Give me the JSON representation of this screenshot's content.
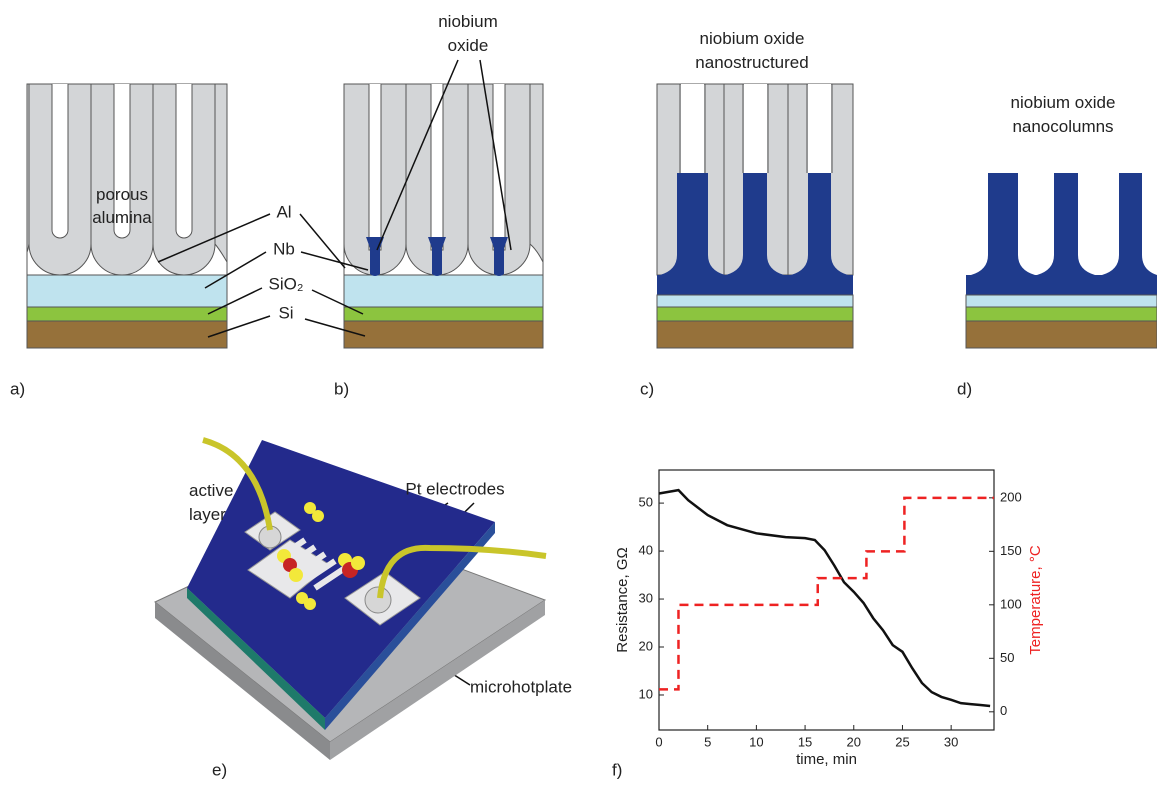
{
  "panel_labels": [
    "a)",
    "b)",
    "c)",
    "d)",
    "e)",
    "f)"
  ],
  "panel_a": {
    "porous_alumina": [
      "porous",
      "alumina"
    ],
    "layers": [
      "Al",
      "Nb",
      "SiO₂",
      "Si"
    ]
  },
  "panel_b": {
    "niobium_oxide": [
      "niobium",
      "oxide"
    ]
  },
  "panel_c": {
    "title": [
      "niobium oxide",
      "nanostructured"
    ]
  },
  "panel_d": {
    "title": [
      "niobium oxide",
      "nanocolumns"
    ]
  },
  "panel_e": {
    "active_layer": [
      "active",
      "layer"
    ],
    "pt_electrodes": "Pt electrodes",
    "microhotplate": "microhotplate"
  },
  "chart_data": {
    "type": "line",
    "xlabel": "time, min",
    "ylabel": "Resistance, GΩ",
    "y2label": "Temperature, °C",
    "xlim": [
      0,
      34.4
    ],
    "xticks": [
      0,
      5,
      10,
      15,
      20,
      25,
      30
    ],
    "ylim": [
      2.7,
      56.9
    ],
    "yticks": [
      10,
      20,
      30,
      40,
      50
    ],
    "y2lim": [
      -17,
      226
    ],
    "y2ticks": [
      0,
      50,
      100,
      150,
      200
    ],
    "series": [
      {
        "color": "#111111",
        "line_style": "solid",
        "x": [
          0,
          2,
          3,
          5,
          7,
          10,
          13,
          15,
          16,
          17,
          18,
          19,
          20,
          21,
          22,
          23,
          24,
          25,
          26,
          27,
          28,
          29,
          30,
          31,
          32,
          33,
          34
        ],
        "values": [
          52,
          52.7,
          50.6,
          47.5,
          45.4,
          43.7,
          42.9,
          42.7,
          42.3,
          40.2,
          37,
          33.5,
          31.5,
          29.2,
          26,
          23.5,
          20.4,
          19,
          15.6,
          12.5,
          10.6,
          9.6,
          9,
          8.3,
          8.1,
          7.9,
          7.7
        ]
      },
      {
        "color": "#ee2222",
        "line_style": "dashed",
        "axis": "y2",
        "x": [
          0,
          2,
          2,
          16.3,
          16.3,
          21.3,
          21.3,
          25.2,
          25.2,
          34.4
        ],
        "values": [
          21,
          21,
          100,
          100,
          125,
          125,
          150,
          150,
          200,
          200
        ]
      }
    ]
  }
}
